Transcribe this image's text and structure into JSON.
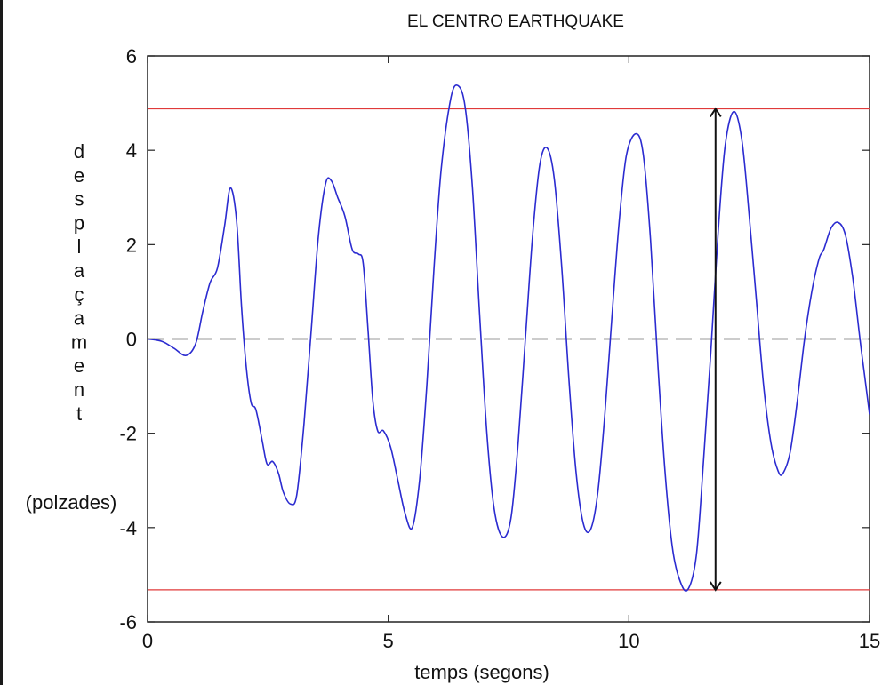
{
  "chart_data": {
    "type": "line",
    "title": "EL CENTRO EARTHQUAKE",
    "xlabel": "temps (segons)",
    "ylabel_vertical": "desplaçament",
    "ylabel_unit": "(polzades)",
    "xlim": [
      0,
      15
    ],
    "ylim": [
      -6,
      6
    ],
    "x_ticks": [
      0,
      5,
      10,
      15
    ],
    "y_ticks": [
      -6,
      -4,
      -2,
      0,
      2,
      4,
      6
    ],
    "grid": false,
    "colors": {
      "series": "#2b2bd0",
      "bounds": "#e03a3a",
      "zero_line": "#333333",
      "arrow": "#111111"
    },
    "reference_lines": [
      {
        "y": 4.88,
        "style": "solid",
        "color": "#e03a3a"
      },
      {
        "y": -5.32,
        "style": "solid",
        "color": "#e03a3a"
      },
      {
        "y": 0,
        "style": "dashed",
        "color": "#333333"
      }
    ],
    "arrow": {
      "x": 11.8,
      "y_from": -5.32,
      "y_to": 4.88
    },
    "series": [
      {
        "values_xy": [
          [
            0.0,
            0.0
          ],
          [
            0.3,
            -0.05
          ],
          [
            0.55,
            -0.2
          ],
          [
            0.8,
            -0.35
          ],
          [
            1.0,
            -0.1
          ],
          [
            1.15,
            0.6
          ],
          [
            1.3,
            1.2
          ],
          [
            1.45,
            1.5
          ],
          [
            1.6,
            2.4
          ],
          [
            1.72,
            3.2
          ],
          [
            1.85,
            2.5
          ],
          [
            1.95,
            0.7
          ],
          [
            2.05,
            -0.6
          ],
          [
            2.15,
            -1.35
          ],
          [
            2.25,
            -1.5
          ],
          [
            2.38,
            -2.15
          ],
          [
            2.48,
            -2.65
          ],
          [
            2.6,
            -2.6
          ],
          [
            2.72,
            -2.85
          ],
          [
            2.82,
            -3.25
          ],
          [
            2.97,
            -3.5
          ],
          [
            3.1,
            -3.3
          ],
          [
            3.25,
            -1.8
          ],
          [
            3.4,
            0.2
          ],
          [
            3.55,
            2.2
          ],
          [
            3.7,
            3.3
          ],
          [
            3.82,
            3.35
          ],
          [
            3.95,
            3.0
          ],
          [
            4.1,
            2.6
          ],
          [
            4.25,
            1.9
          ],
          [
            4.38,
            1.8
          ],
          [
            4.48,
            1.6
          ],
          [
            4.58,
            0.2
          ],
          [
            4.68,
            -1.3
          ],
          [
            4.78,
            -1.95
          ],
          [
            4.9,
            -1.95
          ],
          [
            5.05,
            -2.3
          ],
          [
            5.2,
            -3.0
          ],
          [
            5.35,
            -3.7
          ],
          [
            5.5,
            -4.0
          ],
          [
            5.65,
            -3.0
          ],
          [
            5.8,
            -1.0
          ],
          [
            5.95,
            1.5
          ],
          [
            6.1,
            3.6
          ],
          [
            6.3,
            5.1
          ],
          [
            6.45,
            5.37
          ],
          [
            6.6,
            4.9
          ],
          [
            6.75,
            3.2
          ],
          [
            6.9,
            0.5
          ],
          [
            7.05,
            -2.0
          ],
          [
            7.2,
            -3.6
          ],
          [
            7.38,
            -4.2
          ],
          [
            7.55,
            -3.8
          ],
          [
            7.7,
            -2.2
          ],
          [
            7.85,
            0.0
          ],
          [
            8.0,
            2.2
          ],
          [
            8.15,
            3.7
          ],
          [
            8.3,
            4.05
          ],
          [
            8.45,
            3.4
          ],
          [
            8.6,
            1.6
          ],
          [
            8.75,
            -0.8
          ],
          [
            8.9,
            -2.8
          ],
          [
            9.05,
            -3.9
          ],
          [
            9.2,
            -4.05
          ],
          [
            9.35,
            -3.3
          ],
          [
            9.5,
            -1.6
          ],
          [
            9.65,
            0.5
          ],
          [
            9.8,
            2.5
          ],
          [
            9.95,
            3.9
          ],
          [
            10.15,
            4.35
          ],
          [
            10.3,
            3.9
          ],
          [
            10.45,
            2.1
          ],
          [
            10.6,
            -0.5
          ],
          [
            10.75,
            -2.8
          ],
          [
            10.9,
            -4.4
          ],
          [
            11.05,
            -5.1
          ],
          [
            11.22,
            -5.32
          ],
          [
            11.4,
            -4.6
          ],
          [
            11.55,
            -2.6
          ],
          [
            11.7,
            -0.3
          ],
          [
            11.85,
            2.2
          ],
          [
            12.0,
            4.1
          ],
          [
            12.18,
            4.82
          ],
          [
            12.35,
            4.2
          ],
          [
            12.5,
            2.6
          ],
          [
            12.65,
            0.8
          ],
          [
            12.8,
            -1.0
          ],
          [
            12.95,
            -2.2
          ],
          [
            13.1,
            -2.8
          ],
          [
            13.2,
            -2.85
          ],
          [
            13.35,
            -2.4
          ],
          [
            13.5,
            -1.3
          ],
          [
            13.65,
            0.0
          ],
          [
            13.8,
            1.0
          ],
          [
            13.95,
            1.7
          ],
          [
            14.05,
            1.9
          ],
          [
            14.2,
            2.35
          ],
          [
            14.35,
            2.47
          ],
          [
            14.5,
            2.2
          ],
          [
            14.65,
            1.3
          ],
          [
            14.8,
            0.0
          ],
          [
            14.9,
            -0.8
          ],
          [
            15.0,
            -1.6
          ]
        ]
      }
    ]
  }
}
